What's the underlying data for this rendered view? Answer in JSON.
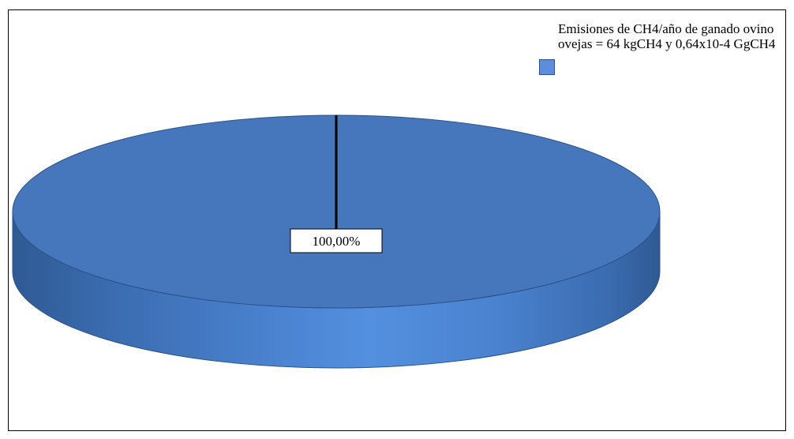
{
  "chart_data": {
    "type": "pie",
    "title": "",
    "categories": [
      "Emisiones de CH4/año de ganado ovino ovejas = 64 kgCH4 y 0,64x10-4 GgCH4"
    ],
    "values": [
      100
    ],
    "data_labels": [
      "100,00%"
    ],
    "legend": {
      "position": "top-right",
      "entries": [
        "Emisiones de CH4/año de ganado ovino ovejas = 64 kgCH4 y 0,64x10-4 GgCH4"
      ]
    },
    "three_d": true,
    "colors": {
      "top": "#4677bc",
      "side_light": "#4f8ad8",
      "side_dark": "#2f5a93",
      "legend_swatch": "#5b8fdb"
    }
  }
}
